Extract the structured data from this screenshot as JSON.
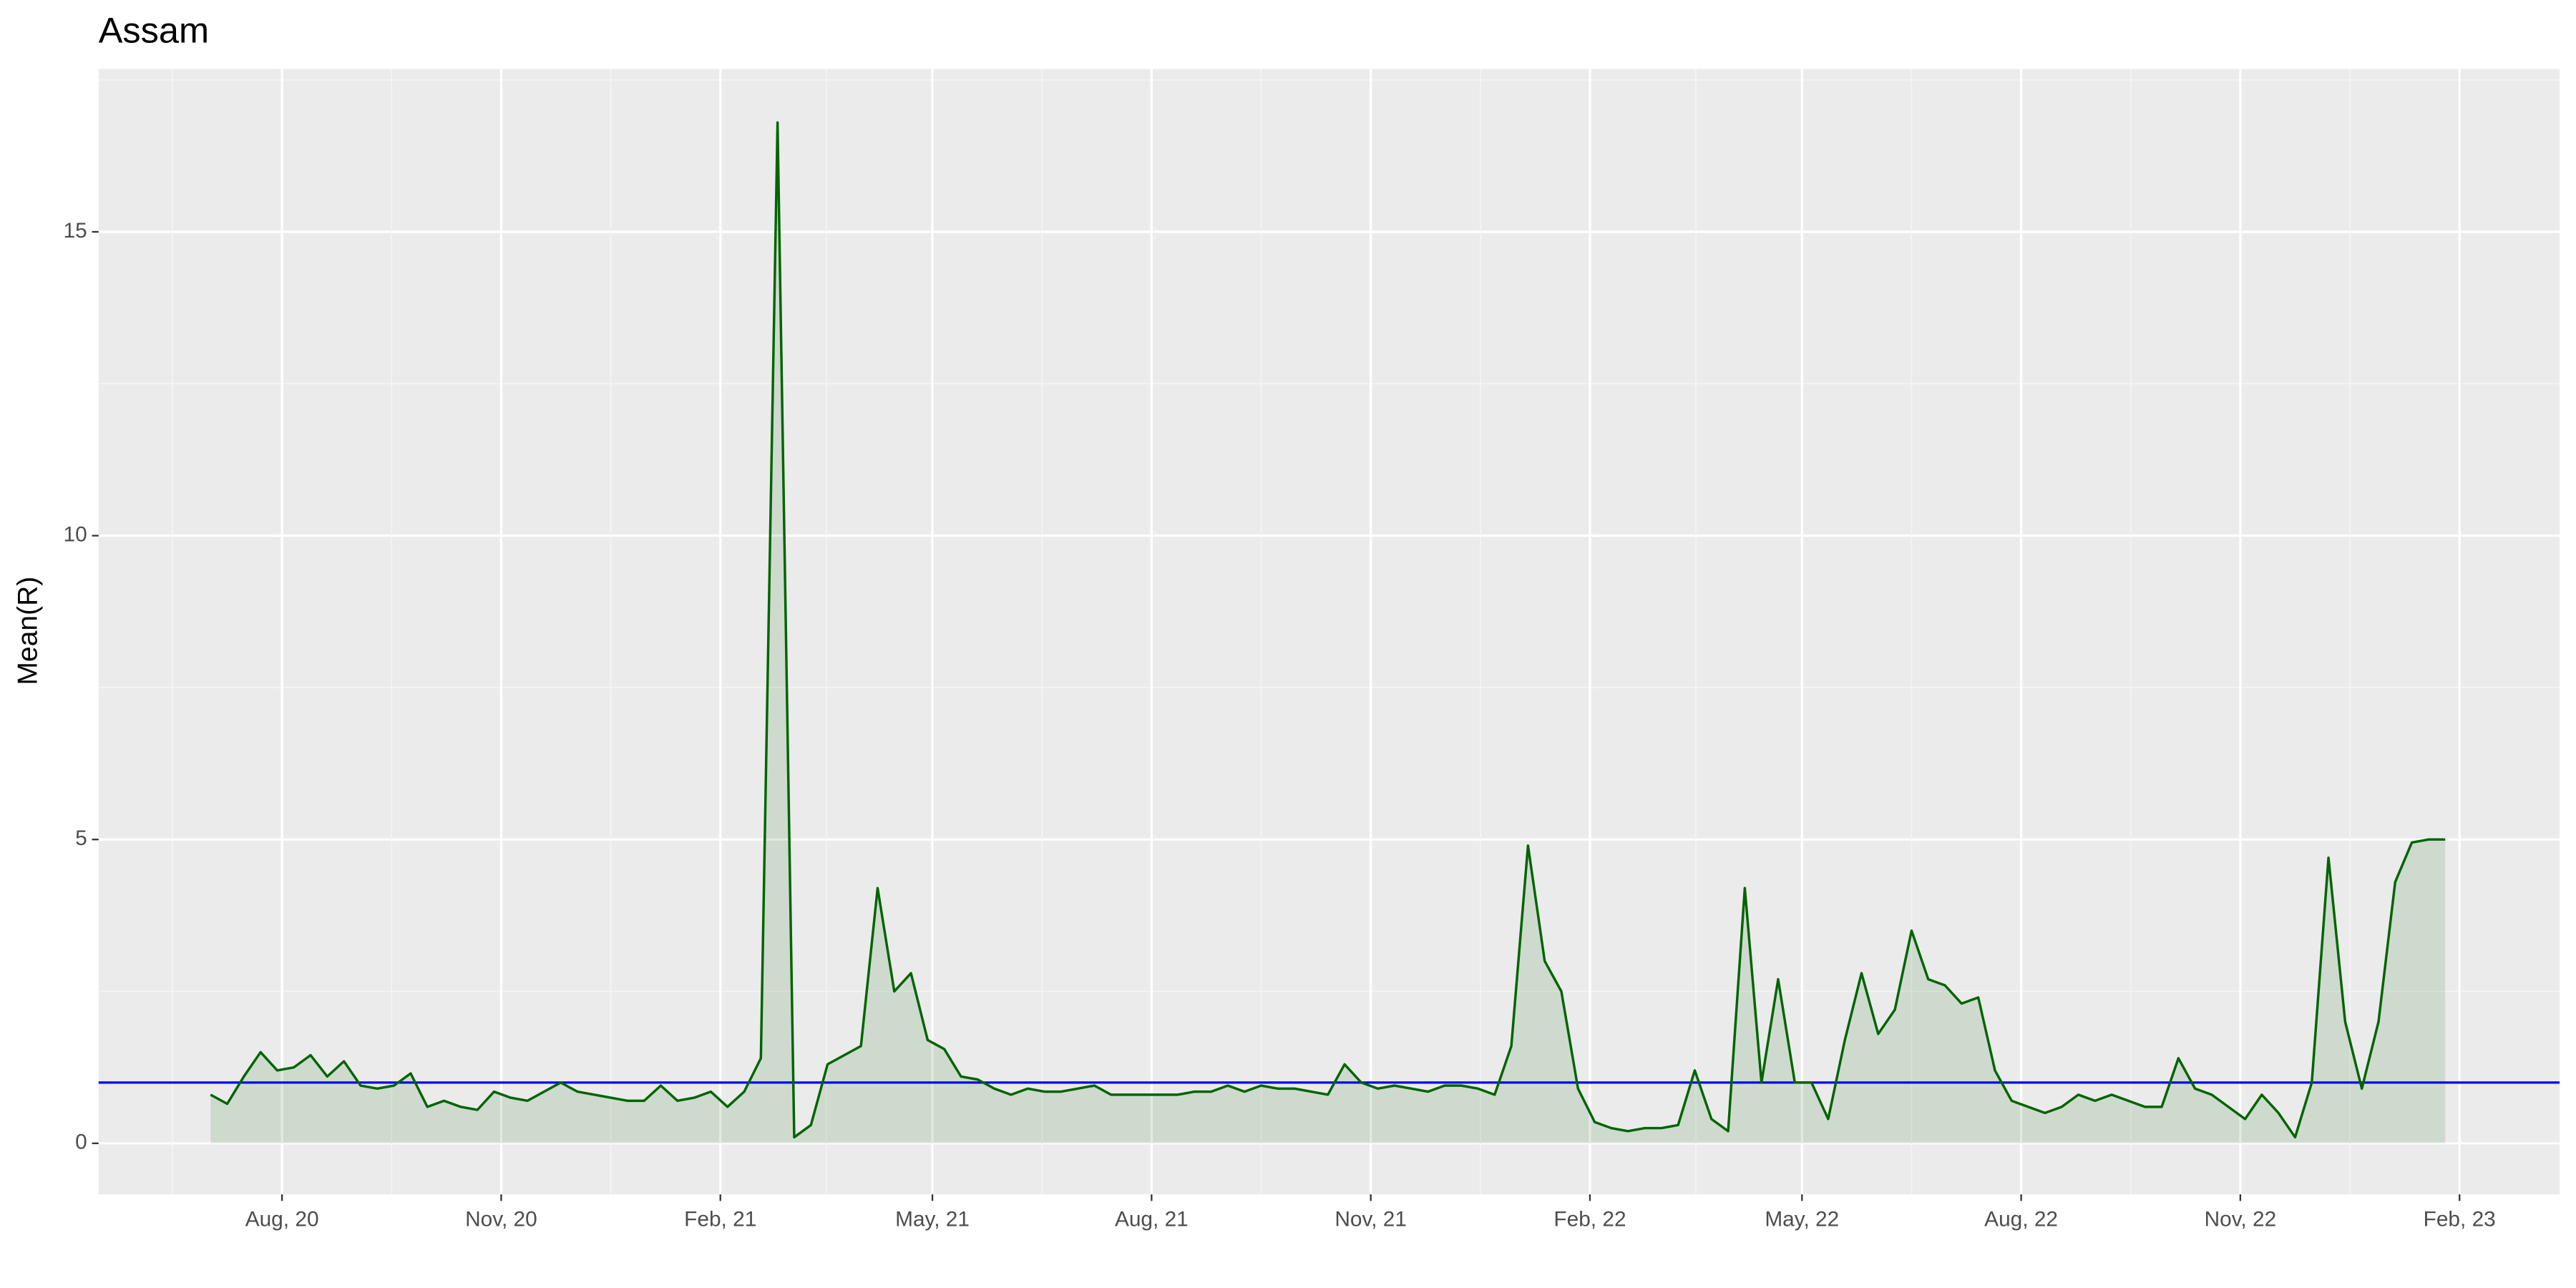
{
  "chart_data": {
    "type": "line",
    "title": "Assam",
    "y_label": "Mean(R)",
    "x": [
      "2020-07-02",
      "2020-07-09",
      "2020-07-16",
      "2020-07-23",
      "2020-07-30",
      "2020-08-06",
      "2020-08-13",
      "2020-08-20",
      "2020-08-27",
      "2020-09-03",
      "2020-09-10",
      "2020-09-17",
      "2020-09-24",
      "2020-10-01",
      "2020-10-08",
      "2020-10-15",
      "2020-10-22",
      "2020-10-29",
      "2020-11-05",
      "2020-11-12",
      "2020-11-19",
      "2020-11-26",
      "2020-12-03",
      "2020-12-10",
      "2020-12-17",
      "2020-12-24",
      "2020-12-31",
      "2021-01-07",
      "2021-01-14",
      "2021-01-21",
      "2021-01-28",
      "2021-02-04",
      "2021-02-11",
      "2021-02-18",
      "2021-02-25",
      "2021-03-04",
      "2021-03-11",
      "2021-03-18",
      "2021-03-25",
      "2021-04-01",
      "2021-04-08",
      "2021-04-15",
      "2021-04-22",
      "2021-04-29",
      "2021-05-06",
      "2021-05-13",
      "2021-05-20",
      "2021-05-27",
      "2021-06-03",
      "2021-06-10",
      "2021-06-17",
      "2021-06-24",
      "2021-07-01",
      "2021-07-08",
      "2021-07-15",
      "2021-07-22",
      "2021-07-29",
      "2021-08-05",
      "2021-08-12",
      "2021-08-19",
      "2021-08-26",
      "2021-09-02",
      "2021-09-09",
      "2021-09-16",
      "2021-09-23",
      "2021-09-30",
      "2021-10-07",
      "2021-10-14",
      "2021-10-21",
      "2021-10-28",
      "2021-11-04",
      "2021-11-11",
      "2021-11-18",
      "2021-11-25",
      "2021-12-02",
      "2021-12-09",
      "2021-12-16",
      "2021-12-23",
      "2021-12-30",
      "2022-01-06",
      "2022-01-13",
      "2022-01-20",
      "2022-01-27",
      "2022-02-03",
      "2022-02-10",
      "2022-02-17",
      "2022-02-24",
      "2022-03-03",
      "2022-03-10",
      "2022-03-17",
      "2022-03-24",
      "2022-03-31",
      "2022-04-07",
      "2022-04-14",
      "2022-04-21",
      "2022-04-28",
      "2022-05-05",
      "2022-05-12",
      "2022-05-19",
      "2022-05-26",
      "2022-06-02",
      "2022-06-09",
      "2022-06-16",
      "2022-06-23",
      "2022-06-30",
      "2022-07-07",
      "2022-07-14",
      "2022-07-21",
      "2022-07-28",
      "2022-08-04",
      "2022-08-11",
      "2022-08-18",
      "2022-08-25",
      "2022-09-01",
      "2022-09-08",
      "2022-09-15",
      "2022-09-22",
      "2022-09-29",
      "2022-10-06",
      "2022-10-13",
      "2022-10-20",
      "2022-10-27",
      "2022-11-03",
      "2022-11-10",
      "2022-11-17",
      "2022-11-24",
      "2022-12-01",
      "2022-12-08",
      "2022-12-15",
      "2022-12-22",
      "2022-12-29",
      "2023-01-05",
      "2023-01-12",
      "2023-01-19",
      "2023-01-26"
    ],
    "series": [
      {
        "color": "#006400",
        "fill": "#006400",
        "values": [
          0.8,
          0.65,
          1.1,
          1.5,
          1.2,
          1.25,
          1.45,
          1.1,
          1.35,
          0.95,
          0.9,
          0.95,
          1.15,
          0.6,
          0.7,
          0.6,
          0.55,
          0.85,
          0.75,
          0.7,
          0.85,
          1.0,
          0.85,
          0.8,
          0.75,
          0.7,
          0.7,
          0.95,
          0.7,
          0.75,
          0.85,
          0.6,
          0.85,
          1.4,
          16.8,
          0.1,
          0.3,
          1.3,
          1.45,
          1.6,
          4.2,
          2.5,
          2.8,
          1.7,
          1.55,
          1.1,
          1.05,
          0.9,
          0.8,
          0.9,
          0.85,
          0.85,
          0.9,
          0.95,
          0.8,
          0.8,
          0.8,
          0.8,
          0.8,
          0.85,
          0.85,
          0.95,
          0.85,
          0.95,
          0.9,
          0.9,
          0.85,
          0.8,
          1.3,
          1.0,
          0.9,
          0.95,
          0.9,
          0.85,
          0.95,
          0.95,
          0.9,
          0.8,
          1.6,
          4.9,
          3.0,
          2.5,
          0.9,
          0.35,
          0.25,
          0.2,
          0.25,
          0.25,
          0.3,
          1.2,
          0.4,
          0.2,
          4.2,
          1.0,
          2.7,
          1.0,
          1.0,
          0.4,
          1.7,
          2.8,
          1.8,
          2.2,
          3.5,
          2.7,
          2.6,
          2.3,
          2.4,
          1.2,
          0.7,
          0.6,
          0.5,
          0.6,
          0.8,
          0.7,
          0.8,
          0.7,
          0.6,
          0.6,
          1.4,
          0.9,
          0.8,
          0.6,
          0.4,
          0.8,
          0.5,
          0.1,
          1.0,
          4.7,
          2.0,
          0.9,
          2.0,
          4.3,
          4.95,
          5.0,
          5.0
        ]
      }
    ],
    "hline": {
      "value": 1,
      "color": "#0000ff"
    },
    "xlim": [
      "2020-05-16",
      "2023-03-15"
    ],
    "xticks": [
      {
        "value": "2020-08-01",
        "label": "Aug, 20"
      },
      {
        "value": "2020-11-01",
        "label": "Nov, 20"
      },
      {
        "value": "2021-02-01",
        "label": "Feb, 21"
      },
      {
        "value": "2021-05-01",
        "label": "May, 21"
      },
      {
        "value": "2021-08-01",
        "label": "Aug, 21"
      },
      {
        "value": "2021-11-01",
        "label": "Nov, 21"
      },
      {
        "value": "2022-02-01",
        "label": "Feb, 22"
      },
      {
        "value": "2022-05-01",
        "label": "May, 22"
      },
      {
        "value": "2022-08-01",
        "label": "Aug, 22"
      },
      {
        "value": "2022-11-01",
        "label": "Nov, 22"
      },
      {
        "value": "2023-02-01",
        "label": "Feb, 23"
      }
    ],
    "ylim": [
      -0.84,
      17.68
    ],
    "yticks": [
      0,
      5,
      10,
      15
    ],
    "grid": true
  }
}
